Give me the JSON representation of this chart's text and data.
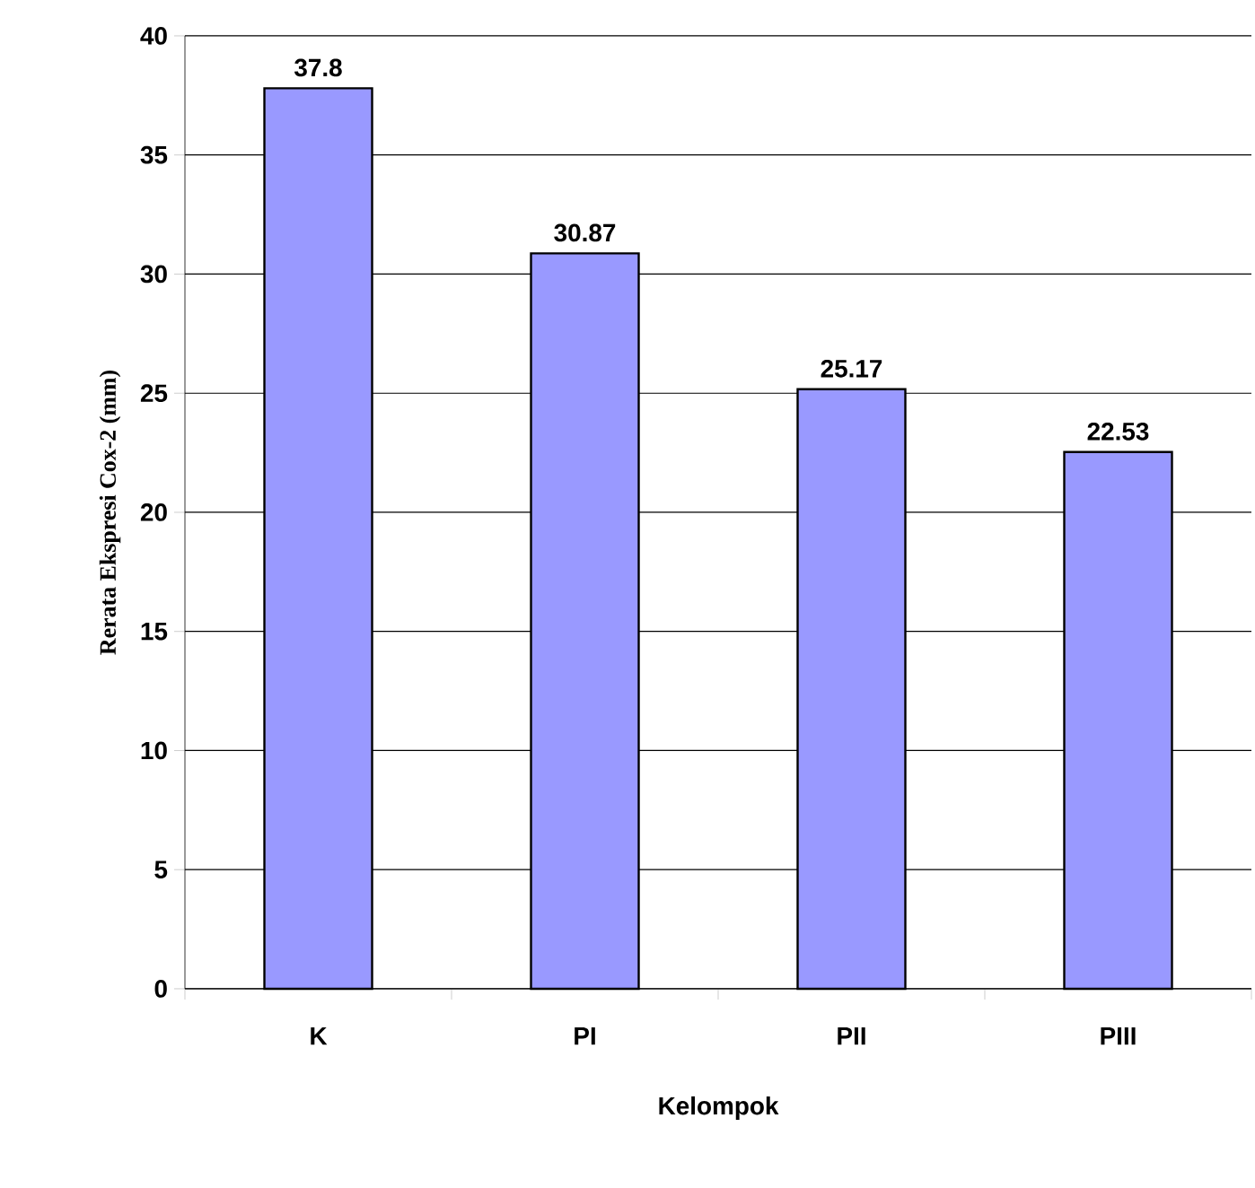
{
  "chart_data": {
    "type": "bar",
    "xlabel": "Kelompok",
    "ylabel": "Rerata Ekspresi Cox-2 (mm)",
    "categories": [
      "K",
      "PI",
      "PII",
      "PIII"
    ],
    "values": [
      37.8,
      30.87,
      25.17,
      22.53
    ],
    "color": "#9999ff",
    "ylim": [
      0,
      40
    ],
    "yticks": [
      0,
      5,
      10,
      15,
      20,
      25,
      30,
      35,
      40
    ],
    "grid": "y",
    "data_labels": true
  }
}
